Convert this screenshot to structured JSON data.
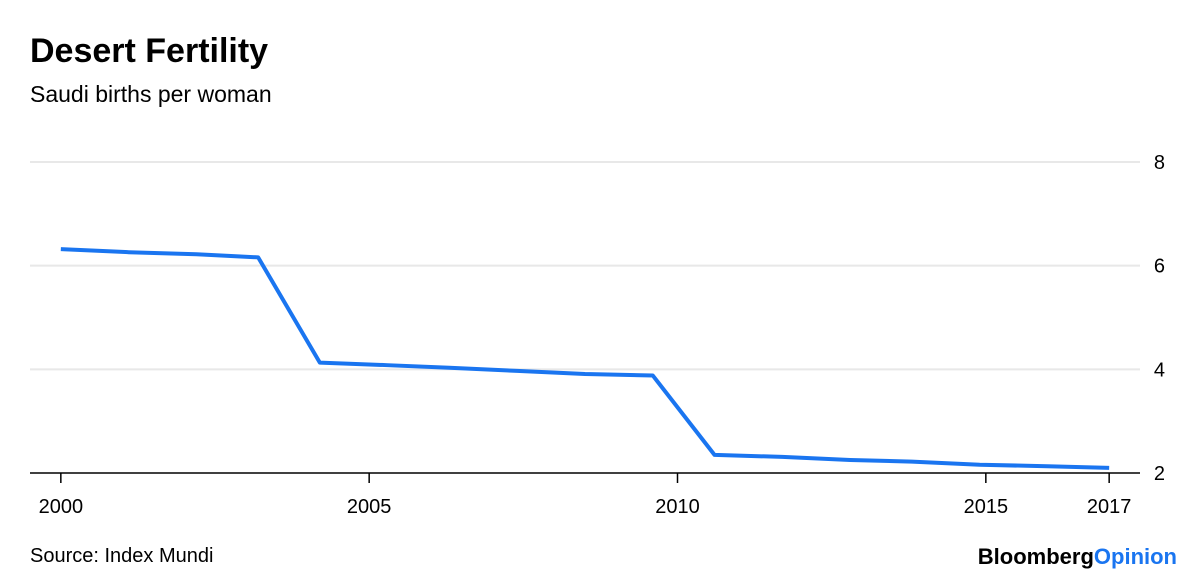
{
  "chart_data": {
    "type": "line",
    "title": "Desert Fertility",
    "subtitle": "Saudi births per woman",
    "x": [
      2000,
      2001.1,
      2002.2,
      2003.2,
      2004.2,
      2005.3,
      2006.3,
      2007.4,
      2008.5,
      2009.6,
      2010.6,
      2011.7,
      2012.8,
      2013.8,
      2014.9,
      2016,
      2017
    ],
    "series": [
      {
        "name": "Saudi births per woman",
        "color": "#1a75f0",
        "values": [
          6.32,
          6.26,
          6.22,
          6.16,
          4.13,
          4.08,
          4.03,
          3.97,
          3.91,
          3.88,
          2.35,
          2.31,
          2.25,
          2.22,
          2.16,
          2.13,
          2.1
        ]
      }
    ],
    "xlim": [
      1999.5,
      2017.5
    ],
    "xticks": [
      2000,
      2005,
      2010,
      2015,
      2017
    ],
    "ylim": [
      2,
      8
    ],
    "yticks": [
      2,
      4,
      6,
      8
    ],
    "grid": true,
    "source": "Source: Index Mundi",
    "brand": [
      "Bloomberg",
      "Opinion"
    ]
  }
}
